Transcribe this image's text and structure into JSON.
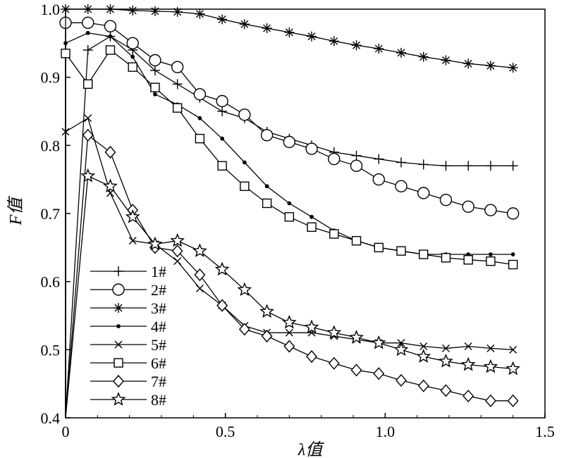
{
  "chart_data": {
    "type": "line",
    "xlabel": "λ值",
    "ylabel": "F值",
    "xlim": [
      0,
      1.5
    ],
    "ylim": [
      0.4,
      1.0
    ],
    "x_ticks": [
      "0",
      "0.5",
      "1.0",
      "1.5"
    ],
    "y_ticks": [
      "0.4",
      "0.5",
      "0.6",
      "0.7",
      "0.8",
      "0.9",
      "1.0"
    ],
    "legend_position": "lower-left",
    "grid": false,
    "series": [
      {
        "name": "1#",
        "marker": "plus",
        "x": [
          0.0,
          0.07,
          0.14,
          0.21,
          0.28,
          0.35,
          0.42,
          0.49,
          0.56,
          0.63,
          0.7,
          0.77,
          0.84,
          0.91,
          0.98,
          1.05,
          1.12,
          1.19,
          1.26,
          1.33,
          1.4
        ],
        "y": [
          0.4,
          0.94,
          0.96,
          0.94,
          0.91,
          0.89,
          0.87,
          0.85,
          0.84,
          0.82,
          0.81,
          0.8,
          0.79,
          0.785,
          0.78,
          0.775,
          0.772,
          0.77,
          0.77,
          0.77,
          0.77
        ]
      },
      {
        "name": "2#",
        "marker": "circle",
        "x": [
          0.0,
          0.0,
          0.07,
          0.14,
          0.21,
          0.28,
          0.35,
          0.42,
          0.49,
          0.56,
          0.63,
          0.7,
          0.77,
          0.84,
          0.91,
          0.98,
          1.05,
          1.12,
          1.19,
          1.26,
          1.33,
          1.4
        ],
        "y": [
          0.4,
          0.98,
          0.98,
          0.975,
          0.95,
          0.925,
          0.915,
          0.875,
          0.865,
          0.845,
          0.815,
          0.805,
          0.795,
          0.78,
          0.77,
          0.75,
          0.74,
          0.73,
          0.72,
          0.71,
          0.705,
          0.7
        ]
      },
      {
        "name": "3#",
        "marker": "asterisk",
        "x": [
          0.0,
          0.0,
          0.07,
          0.14,
          0.21,
          0.28,
          0.35,
          0.42,
          0.49,
          0.56,
          0.63,
          0.7,
          0.77,
          0.84,
          0.91,
          0.98,
          1.05,
          1.12,
          1.19,
          1.26,
          1.33,
          1.4
        ],
        "y": [
          0.4,
          1.0,
          1.0,
          1.0,
          0.998,
          0.997,
          0.996,
          0.993,
          0.985,
          0.978,
          0.972,
          0.966,
          0.96,
          0.953,
          0.947,
          0.942,
          0.936,
          0.93,
          0.925,
          0.92,
          0.917,
          0.914
        ]
      },
      {
        "name": "4#",
        "marker": "dot",
        "x": [
          0.0,
          0.0,
          0.07,
          0.14,
          0.21,
          0.28,
          0.35,
          0.42,
          0.49,
          0.56,
          0.63,
          0.7,
          0.77,
          0.84,
          0.91,
          0.98,
          1.05,
          1.12,
          1.19,
          1.26,
          1.33,
          1.4
        ],
        "y": [
          0.4,
          0.95,
          0.965,
          0.96,
          0.93,
          0.875,
          0.86,
          0.84,
          0.81,
          0.775,
          0.74,
          0.715,
          0.695,
          0.675,
          0.66,
          0.65,
          0.645,
          0.64,
          0.64,
          0.64,
          0.64,
          0.64
        ]
      },
      {
        "name": "5#",
        "marker": "cross",
        "x": [
          0.0,
          0.0,
          0.07,
          0.14,
          0.21,
          0.28,
          0.35,
          0.42,
          0.49,
          0.56,
          0.63,
          0.7,
          0.77,
          0.84,
          0.91,
          0.98,
          1.05,
          1.12,
          1.19,
          1.26,
          1.33,
          1.4
        ],
        "y": [
          0.4,
          0.82,
          0.84,
          0.73,
          0.66,
          0.655,
          0.63,
          0.59,
          0.565,
          0.535,
          0.525,
          0.525,
          0.525,
          0.52,
          0.515,
          0.51,
          0.51,
          0.505,
          0.502,
          0.505,
          0.502,
          0.5
        ]
      },
      {
        "name": "6#",
        "marker": "square",
        "x": [
          0.0,
          0.0,
          0.07,
          0.14,
          0.21,
          0.28,
          0.35,
          0.42,
          0.49,
          0.56,
          0.63,
          0.7,
          0.77,
          0.84,
          0.91,
          0.98,
          1.05,
          1.12,
          1.19,
          1.26,
          1.33,
          1.4
        ],
        "y": [
          0.4,
          0.935,
          0.89,
          0.94,
          0.915,
          0.885,
          0.855,
          0.81,
          0.77,
          0.74,
          0.715,
          0.695,
          0.68,
          0.67,
          0.66,
          0.65,
          0.645,
          0.64,
          0.635,
          0.632,
          0.63,
          0.625
        ]
      },
      {
        "name": "7#",
        "marker": "diamond",
        "x": [
          0.0,
          0.07,
          0.14,
          0.21,
          0.28,
          0.35,
          0.42,
          0.49,
          0.56,
          0.63,
          0.7,
          0.77,
          0.84,
          0.91,
          0.98,
          1.05,
          1.12,
          1.19,
          1.26,
          1.33,
          1.4
        ],
        "y": [
          0.4,
          0.815,
          0.79,
          0.705,
          0.65,
          0.645,
          0.61,
          0.565,
          0.53,
          0.52,
          0.505,
          0.49,
          0.48,
          0.47,
          0.465,
          0.455,
          0.447,
          0.44,
          0.432,
          0.425,
          0.425
        ]
      },
      {
        "name": "8#",
        "marker": "star",
        "x": [
          0.0,
          0.07,
          0.14,
          0.21,
          0.28,
          0.35,
          0.42,
          0.49,
          0.56,
          0.63,
          0.7,
          0.77,
          0.84,
          0.91,
          0.98,
          1.05,
          1.12,
          1.19,
          1.26,
          1.33,
          1.4
        ],
        "y": [
          0.4,
          0.755,
          0.74,
          0.695,
          0.655,
          0.66,
          0.645,
          0.618,
          0.588,
          0.556,
          0.54,
          0.533,
          0.525,
          0.518,
          0.51,
          0.5,
          0.49,
          0.483,
          0.478,
          0.475,
          0.472
        ]
      }
    ]
  }
}
